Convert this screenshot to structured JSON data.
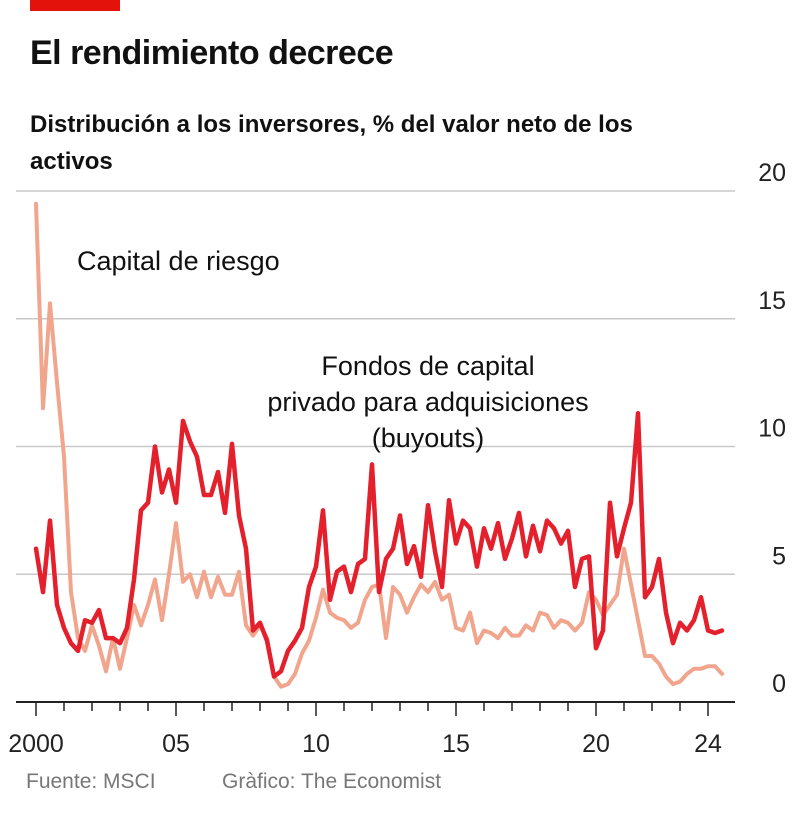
{
  "header": {
    "title": "El rendimiento decrece",
    "subtitle": "Distribución a los inversores, % del valor neto de los activos"
  },
  "footer": {
    "source": "Fuente: MSCI",
    "credit": "Gràfico: The Economist"
  },
  "colors": {
    "accent": "#e3120b",
    "buyouts": "#e3202b",
    "venture": "#f0a58c",
    "grid": "#c9c9c9",
    "axis": "#222222"
  },
  "chart_data": {
    "type": "line",
    "title": "El rendimiento decrece",
    "ylabel": "Distribución a los inversores, % del valor neto de los activos",
    "xlabel": "",
    "xlim": [
      2000,
      2025
    ],
    "ylim": [
      0,
      20
    ],
    "yticks": [
      0,
      5,
      10,
      15,
      20
    ],
    "xtick_labels": [
      {
        "x": 2000,
        "label": "2000"
      },
      {
        "x": 2005,
        "label": "05"
      },
      {
        "x": 2010,
        "label": "10"
      },
      {
        "x": 2015,
        "label": "15"
      },
      {
        "x": 2020,
        "label": "20"
      },
      {
        "x": 2024,
        "label": "24"
      }
    ],
    "grid": true,
    "annotations": [
      {
        "id": "venture-label",
        "text": "Capital de riesgo",
        "x": 2001.5,
        "y": 17
      },
      {
        "id": "buyouts-label",
        "lines": [
          "Fondos de capital",
          "privado para adquisiciones",
          "(buyouts)"
        ],
        "x": 2014.2,
        "y": 12.7
      }
    ],
    "series": [
      {
        "name": "Fondos de capital privado para adquisiciones (buyouts)",
        "color": "#e3202b",
        "x": [
          2000.0,
          2000.25,
          2000.5,
          2000.75,
          2001.0,
          2001.25,
          2001.5,
          2001.75,
          2002.0,
          2002.25,
          2002.5,
          2002.75,
          2003.0,
          2003.25,
          2003.5,
          2003.75,
          2004.0,
          2004.25,
          2004.5,
          2004.75,
          2005.0,
          2005.25,
          2005.5,
          2005.75,
          2006.0,
          2006.25,
          2006.5,
          2006.75,
          2007.0,
          2007.25,
          2007.5,
          2007.75,
          2008.0,
          2008.25,
          2008.5,
          2008.75,
          2009.0,
          2009.25,
          2009.5,
          2009.75,
          2010.0,
          2010.25,
          2010.5,
          2010.75,
          2011.0,
          2011.25,
          2011.5,
          2011.75,
          2012.0,
          2012.25,
          2012.5,
          2012.75,
          2013.0,
          2013.25,
          2013.5,
          2013.75,
          2014.0,
          2014.25,
          2014.5,
          2014.75,
          2015.0,
          2015.25,
          2015.5,
          2015.75,
          2016.0,
          2016.25,
          2016.5,
          2016.75,
          2017.0,
          2017.25,
          2017.5,
          2017.75,
          2018.0,
          2018.25,
          2018.5,
          2018.75,
          2019.0,
          2019.25,
          2019.5,
          2019.75,
          2020.0,
          2020.25,
          2020.5,
          2020.75,
          2021.0,
          2021.25,
          2021.5,
          2021.75,
          2022.0,
          2022.25,
          2022.5,
          2022.75,
          2023.0,
          2023.25,
          2023.5,
          2023.75,
          2024.0,
          2024.25,
          2024.5
        ],
        "values": [
          6.0,
          4.3,
          7.1,
          3.8,
          2.9,
          2.3,
          2.0,
          3.2,
          3.1,
          3.6,
          2.5,
          2.5,
          2.3,
          2.9,
          4.8,
          7.5,
          7.8,
          10.0,
          8.2,
          9.1,
          7.8,
          11.0,
          10.2,
          9.6,
          8.1,
          8.1,
          9.0,
          7.4,
          10.1,
          7.3,
          6.0,
          2.8,
          3.1,
          2.4,
          1.0,
          1.2,
          2.0,
          2.4,
          2.9,
          4.5,
          5.3,
          7.5,
          4.0,
          5.1,
          5.3,
          4.3,
          5.4,
          5.6,
          9.3,
          4.3,
          5.6,
          6.0,
          7.3,
          5.4,
          6.1,
          4.9,
          7.7,
          5.9,
          4.5,
          7.9,
          6.2,
          7.1,
          6.8,
          5.3,
          6.8,
          6.0,
          7.0,
          5.6,
          6.4,
          7.4,
          5.7,
          6.9,
          5.9,
          7.1,
          6.8,
          6.2,
          6.7,
          4.5,
          5.6,
          5.7,
          2.1,
          2.8,
          7.8,
          5.7,
          6.8,
          7.8,
          11.3,
          4.1,
          4.5,
          5.6,
          3.5,
          2.3,
          3.1,
          2.8,
          3.2,
          4.1,
          2.8,
          2.7,
          2.8
        ]
      },
      {
        "name": "Capital de riesgo",
        "color": "#f0a58c",
        "x": [
          2000.0,
          2000.25,
          2000.5,
          2000.75,
          2001.0,
          2001.25,
          2001.5,
          2001.75,
          2002.0,
          2002.25,
          2002.5,
          2002.75,
          2003.0,
          2003.25,
          2003.5,
          2003.75,
          2004.0,
          2004.25,
          2004.5,
          2004.75,
          2005.0,
          2005.25,
          2005.5,
          2005.75,
          2006.0,
          2006.25,
          2006.5,
          2006.75,
          2007.0,
          2007.25,
          2007.5,
          2007.75,
          2008.0,
          2008.25,
          2008.5,
          2008.75,
          2009.0,
          2009.25,
          2009.5,
          2009.75,
          2010.0,
          2010.25,
          2010.5,
          2010.75,
          2011.0,
          2011.25,
          2011.5,
          2011.75,
          2012.0,
          2012.25,
          2012.5,
          2012.75,
          2013.0,
          2013.25,
          2013.5,
          2013.75,
          2014.0,
          2014.25,
          2014.5,
          2014.75,
          2015.0,
          2015.25,
          2015.5,
          2015.75,
          2016.0,
          2016.25,
          2016.5,
          2016.75,
          2017.0,
          2017.25,
          2017.5,
          2017.75,
          2018.0,
          2018.25,
          2018.5,
          2018.75,
          2019.0,
          2019.25,
          2019.5,
          2019.75,
          2020.0,
          2020.25,
          2020.5,
          2020.75,
          2021.0,
          2021.25,
          2021.5,
          2021.75,
          2022.0,
          2022.25,
          2022.5,
          2022.75,
          2023.0,
          2023.25,
          2023.5,
          2023.75,
          2024.0,
          2024.25,
          2024.5
        ],
        "values": [
          19.5,
          11.5,
          15.6,
          12.5,
          9.6,
          4.3,
          2.5,
          2.0,
          3.0,
          2.2,
          1.2,
          2.5,
          1.3,
          2.5,
          3.8,
          3.0,
          3.8,
          4.8,
          3.2,
          5.0,
          7.0,
          4.7,
          5.0,
          4.1,
          5.1,
          4.1,
          4.9,
          4.2,
          4.2,
          5.1,
          3.0,
          2.6,
          3.0,
          2.5,
          1.0,
          0.6,
          0.7,
          1.1,
          1.9,
          2.4,
          3.3,
          4.4,
          3.5,
          3.3,
          3.2,
          2.9,
          3.1,
          4.0,
          4.5,
          4.6,
          2.5,
          4.5,
          4.2,
          3.5,
          4.1,
          4.6,
          4.3,
          4.7,
          4.0,
          4.2,
          2.9,
          2.8,
          3.5,
          2.3,
          2.8,
          2.7,
          2.5,
          2.9,
          2.6,
          2.6,
          3.0,
          2.8,
          3.5,
          3.4,
          2.9,
          3.2,
          3.1,
          2.8,
          3.1,
          4.3,
          4.0,
          3.4,
          3.8,
          4.2,
          6.0,
          4.6,
          3.2,
          1.8,
          1.8,
          1.5,
          1.0,
          0.7,
          0.8,
          1.1,
          1.3,
          1.3,
          1.4,
          1.4,
          1.1
        ]
      }
    ]
  }
}
